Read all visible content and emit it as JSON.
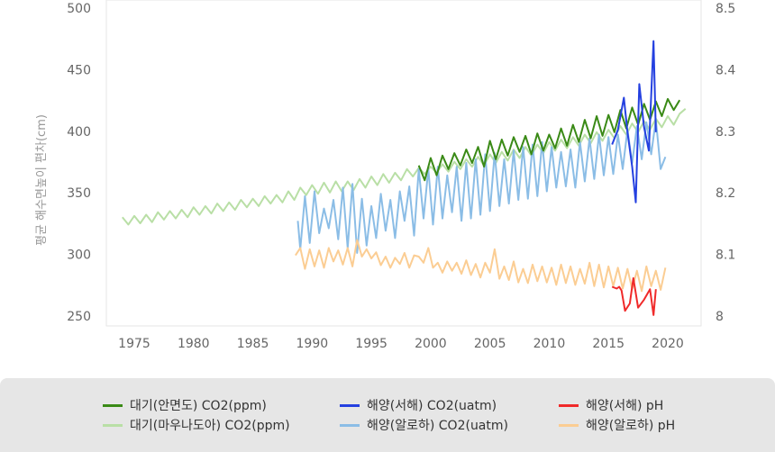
{
  "chart_data": {
    "type": "line",
    "ylabel": "평균 해수면높이 편차(cm)",
    "x_ticks": [
      "1975",
      "1980",
      "1985",
      "1990",
      "1995",
      "2000",
      "2005",
      "2010",
      "2015",
      "2020"
    ],
    "y_left_ticks": [
      "250",
      "300",
      "350",
      "400",
      "450",
      "500"
    ],
    "y_right_ticks": [
      "8",
      "8.1",
      "8.2",
      "8.3",
      "8.4",
      "8.5"
    ],
    "ylim_left": [
      250,
      500
    ],
    "ylim_right": [
      8.0,
      8.5
    ],
    "xlim": [
      1972,
      2022
    ],
    "grid": false,
    "legend_position": "bottom",
    "series": [
      {
        "name": "대기(안면도) CO2(ppm)",
        "color": "#3a8a16",
        "axis": "left",
        "x": [
          1999.0,
          1999.5,
          2000.0,
          2000.5,
          2001.0,
          2001.5,
          2002.0,
          2002.5,
          2003.0,
          2003.5,
          2004.0,
          2004.5,
          2005.0,
          2005.5,
          2006.0,
          2006.5,
          2007.0,
          2007.5,
          2008.0,
          2008.5,
          2009.0,
          2009.5,
          2010.0,
          2010.5,
          2011.0,
          2011.5,
          2012.0,
          2012.5,
          2013.0,
          2013.5,
          2014.0,
          2014.5,
          2015.0,
          2015.5,
          2016.0,
          2016.5,
          2017.0,
          2017.5,
          2018.0,
          2018.5,
          2019.0,
          2019.5,
          2020.0,
          2020.5,
          2021.0
        ],
        "values": [
          373,
          361,
          379,
          365,
          381,
          370,
          383,
          373,
          386,
          375,
          388,
          372,
          393,
          378,
          394,
          381,
          396,
          384,
          397,
          382,
          399,
          385,
          398,
          387,
          403,
          389,
          406,
          392,
          410,
          395,
          413,
          397,
          414,
          400,
          418,
          403,
          420,
          406,
          423,
          410,
          425,
          413,
          427,
          418,
          426
        ]
      },
      {
        "name": "대기(마우나도아) CO2(ppm)",
        "color": "#b9dfa6",
        "axis": "left",
        "x": [
          1974.0,
          1974.5,
          1975.0,
          1975.5,
          1976.0,
          1976.5,
          1977.0,
          1977.5,
          1978.0,
          1978.5,
          1979.0,
          1979.5,
          1980.0,
          1980.5,
          1981.0,
          1981.5,
          1982.0,
          1982.5,
          1983.0,
          1983.5,
          1984.0,
          1984.5,
          1985.0,
          1985.5,
          1986.0,
          1986.5,
          1987.0,
          1987.5,
          1988.0,
          1988.5,
          1989.0,
          1989.5,
          1990.0,
          1990.5,
          1991.0,
          1991.5,
          1992.0,
          1992.5,
          1993.0,
          1993.5,
          1994.0,
          1994.5,
          1995.0,
          1995.5,
          1996.0,
          1996.5,
          1997.0,
          1997.5,
          1998.0,
          1998.5,
          1999.0,
          1999.5,
          2000.0,
          2000.5,
          2001.0,
          2001.5,
          2002.0,
          2002.5,
          2003.0,
          2003.5,
          2004.0,
          2004.5,
          2005.0,
          2005.5,
          2006.0,
          2006.5,
          2007.0,
          2007.5,
          2008.0,
          2008.5,
          2009.0,
          2009.5,
          2010.0,
          2010.5,
          2011.0,
          2011.5,
          2012.0,
          2012.5,
          2013.0,
          2013.5,
          2014.0,
          2014.5,
          2015.0,
          2015.5,
          2016.0,
          2016.5,
          2017.0,
          2017.5,
          2018.0,
          2018.5,
          2019.0,
          2019.5,
          2020.0,
          2020.5,
          2021.0,
          2021.5
        ],
        "values": [
          331,
          325,
          332,
          326,
          333,
          327,
          335,
          329,
          336,
          330,
          337,
          331,
          339,
          333,
          340,
          334,
          342,
          336,
          343,
          337,
          345,
          339,
          346,
          340,
          348,
          342,
          349,
          343,
          352,
          345,
          355,
          349,
          357,
          350,
          359,
          351,
          360,
          352,
          360,
          353,
          362,
          355,
          364,
          357,
          366,
          359,
          367,
          361,
          370,
          364,
          371,
          366,
          372,
          367,
          374,
          368,
          376,
          370,
          378,
          372,
          380,
          373,
          382,
          375,
          384,
          377,
          386,
          379,
          388,
          381,
          390,
          383,
          392,
          385,
          394,
          387,
          396,
          389,
          398,
          391,
          400,
          393,
          402,
          395,
          405,
          398,
          407,
          400,
          409,
          402,
          411,
          404,
          413,
          406,
          415,
          419
        ]
      },
      {
        "name": "해양(서해) CO2(uatm)",
        "color": "#2440e0",
        "axis": "left",
        "x": [
          2015.3,
          2015.8,
          2016.3,
          2016.6,
          2017.0,
          2017.3,
          2017.6,
          2018.0,
          2018.4,
          2018.8,
          2019.0
        ],
        "values": [
          390,
          402,
          428,
          400,
          372,
          343,
          439,
          404,
          385,
          474,
          400
        ]
      },
      {
        "name": "해양(알로하) CO2(uatm)",
        "color": "#8bbde6",
        "axis": "left",
        "x": [
          1988.8,
          1989.0,
          1989.4,
          1989.8,
          1990.2,
          1990.6,
          1991.0,
          1991.4,
          1991.8,
          1992.2,
          1992.6,
          1993.0,
          1993.4,
          1993.8,
          1994.2,
          1994.6,
          1995.0,
          1995.4,
          1995.8,
          1996.2,
          1996.6,
          1997.0,
          1997.4,
          1997.8,
          1998.2,
          1998.6,
          1999.0,
          1999.4,
          1999.8,
          2000.2,
          2000.6,
          2001.0,
          2001.4,
          2001.8,
          2002.2,
          2002.6,
          2003.0,
          2003.4,
          2003.8,
          2004.2,
          2004.6,
          2005.0,
          2005.4,
          2005.8,
          2006.2,
          2006.6,
          2007.0,
          2007.4,
          2007.8,
          2008.2,
          2008.6,
          2009.0,
          2009.4,
          2009.8,
          2010.2,
          2010.6,
          2011.0,
          2011.4,
          2011.8,
          2012.2,
          2012.6,
          2013.0,
          2013.4,
          2013.8,
          2014.2,
          2014.6,
          2015.0,
          2015.4,
          2015.8,
          2016.2,
          2016.6,
          2017.0,
          2017.4,
          2017.8,
          2018.2,
          2018.6,
          2019.0,
          2019.4,
          2019.8
        ],
        "values": [
          328,
          305,
          348,
          310,
          352,
          318,
          338,
          322,
          345,
          313,
          355,
          306,
          358,
          302,
          346,
          308,
          340,
          314,
          350,
          320,
          345,
          314,
          352,
          328,
          356,
          316,
          370,
          330,
          370,
          325,
          372,
          330,
          365,
          335,
          372,
          328,
          375,
          330,
          378,
          333,
          382,
          336,
          383,
          340,
          378,
          342,
          385,
          345,
          388,
          346,
          390,
          348,
          392,
          352,
          388,
          355,
          384,
          356,
          386,
          355,
          392,
          360,
          395,
          362,
          398,
          365,
          396,
          366,
          398,
          370,
          402,
          375,
          405,
          378,
          408,
          382,
          410,
          370,
          380
        ]
      },
      {
        "name": "해양(서해) pH",
        "color": "#f02a2a",
        "axis": "right",
        "x": [
          2015.3,
          2015.7,
          2015.9,
          2016.1,
          2016.4,
          2016.8,
          2017.1,
          2017.5,
          2018.0,
          2018.5,
          2018.8,
          2019.0
        ],
        "values": [
          8.049,
          8.046,
          8.049,
          8.043,
          8.01,
          8.022,
          8.063,
          8.015,
          8.028,
          8.045,
          8.003,
          8.045
        ]
      },
      {
        "name": "해양(알로하) pH",
        "color": "#fbcd93",
        "axis": "right",
        "x": [
          1988.6,
          1989.0,
          1989.4,
          1989.8,
          1990.2,
          1990.6,
          1991.0,
          1991.4,
          1991.8,
          1992.2,
          1992.6,
          1993.0,
          1993.4,
          1993.8,
          1994.2,
          1994.6,
          1995.0,
          1995.4,
          1995.8,
          1996.2,
          1996.6,
          1997.0,
          1997.4,
          1997.8,
          1998.2,
          1998.6,
          1999.0,
          1999.4,
          1999.8,
          2000.2,
          2000.6,
          2001.0,
          2001.4,
          2001.8,
          2002.2,
          2002.6,
          2003.0,
          2003.4,
          2003.8,
          2004.2,
          2004.6,
          2005.0,
          2005.4,
          2005.8,
          2006.2,
          2006.6,
          2007.0,
          2007.4,
          2007.8,
          2008.2,
          2008.6,
          2009.0,
          2009.4,
          2009.8,
          2010.2,
          2010.6,
          2011.0,
          2011.4,
          2011.8,
          2012.2,
          2012.6,
          2013.0,
          2013.4,
          2013.8,
          2014.2,
          2014.6,
          2015.0,
          2015.4,
          2015.8,
          2016.2,
          2016.6,
          2017.0,
          2017.4,
          2017.8,
          2018.2,
          2018.6,
          2019.0,
          2019.4,
          2019.8
        ],
        "values": [
          8.1,
          8.112,
          8.078,
          8.11,
          8.082,
          8.108,
          8.08,
          8.112,
          8.09,
          8.108,
          8.085,
          8.112,
          8.082,
          8.125,
          8.098,
          8.11,
          8.095,
          8.105,
          8.084,
          8.098,
          8.08,
          8.096,
          8.086,
          8.104,
          8.08,
          8.1,
          8.098,
          8.088,
          8.112,
          8.08,
          8.088,
          8.072,
          8.09,
          8.075,
          8.088,
          8.07,
          8.092,
          8.068,
          8.086,
          8.064,
          8.088,
          8.072,
          8.11,
          8.062,
          8.082,
          8.06,
          8.09,
          8.056,
          8.078,
          8.055,
          8.085,
          8.058,
          8.082,
          8.056,
          8.08,
          8.052,
          8.085,
          8.055,
          8.082,
          8.052,
          8.078,
          8.054,
          8.088,
          8.05,
          8.085,
          8.048,
          8.082,
          8.05,
          8.08,
          8.046,
          8.078,
          8.045,
          8.075,
          8.042,
          8.082,
          8.05,
          8.075,
          8.044,
          8.08
        ]
      }
    ]
  }
}
